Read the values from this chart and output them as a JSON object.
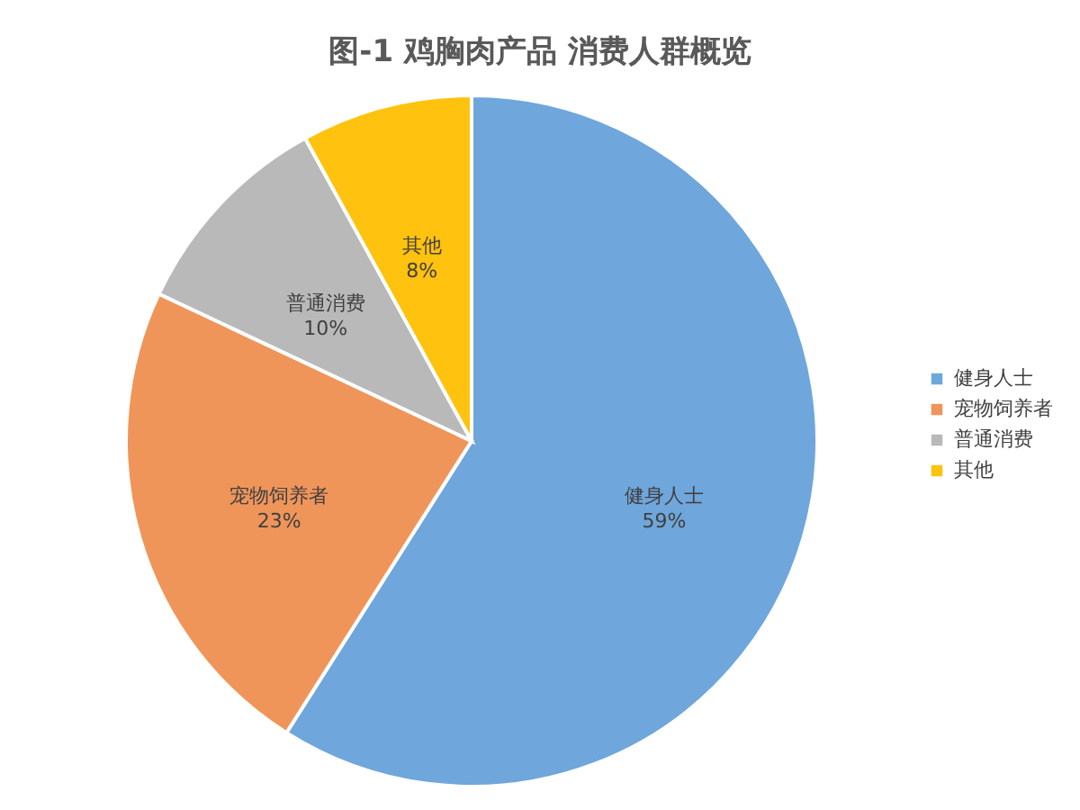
{
  "chart_data": {
    "type": "pie",
    "title": "图-1 鸡胸肉产品 消费人群概览",
    "categories": [
      "健身人士",
      "宠物饲养者",
      "普通消费",
      "其他"
    ],
    "values": [
      59,
      23,
      10,
      8
    ],
    "value_labels": [
      "59%",
      "23%",
      "10%",
      "8%"
    ],
    "colors": [
      "#6fa6dc",
      "#f0955a",
      "#b9b9b9",
      "#ffc20e"
    ],
    "legend": "right"
  }
}
